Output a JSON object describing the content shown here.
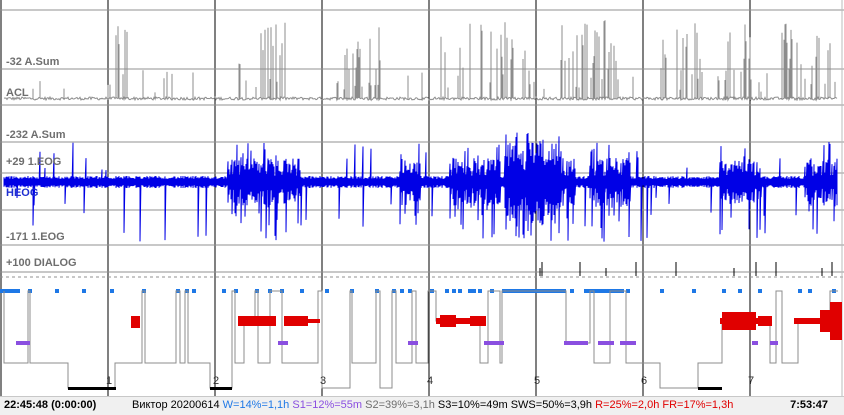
{
  "channels": {
    "acl_scale": "-32 A.Sum",
    "acl_name": "ACL",
    "heog_scale": "-232 A.Sum",
    "eog_top": "+29 1.EOG",
    "heog_name": "HEOG",
    "eog_bottom": "-171 1.EOG",
    "dialog": "+100 DIALOG"
  },
  "hour_marks": [
    "1",
    "2",
    "3",
    "4",
    "5",
    "6",
    "7"
  ],
  "status": {
    "start_time": "22:45:48 (0:00:00)",
    "end_time": "7:53:47",
    "subject": "Виктор 20200614",
    "stats": [
      {
        "text": "W=14%=1,1h",
        "color": "#1e78e6"
      },
      {
        "text": "S1=12%=55m",
        "color": "#8a4fe0"
      },
      {
        "text": "S2=39%=3,1h",
        "color": "#6e6e6e"
      },
      {
        "text": "S3=10%=49m",
        "color": "#000000"
      },
      {
        "text": "SWS=50%=3,9h",
        "color": "#000000"
      },
      {
        "text": "R=25%=2,0h",
        "color": "#e00000"
      },
      {
        "text": "FR=17%=1,3h",
        "color": "#e00000"
      }
    ]
  },
  "colors": {
    "acl": "#8c8c8c",
    "heog": "#0000e6",
    "wake": "#1e78e6",
    "s1": "#8a4fe0",
    "rem": "#e00000",
    "s3": "#000000",
    "grid": "#000000",
    "hline": "#909090"
  }
}
